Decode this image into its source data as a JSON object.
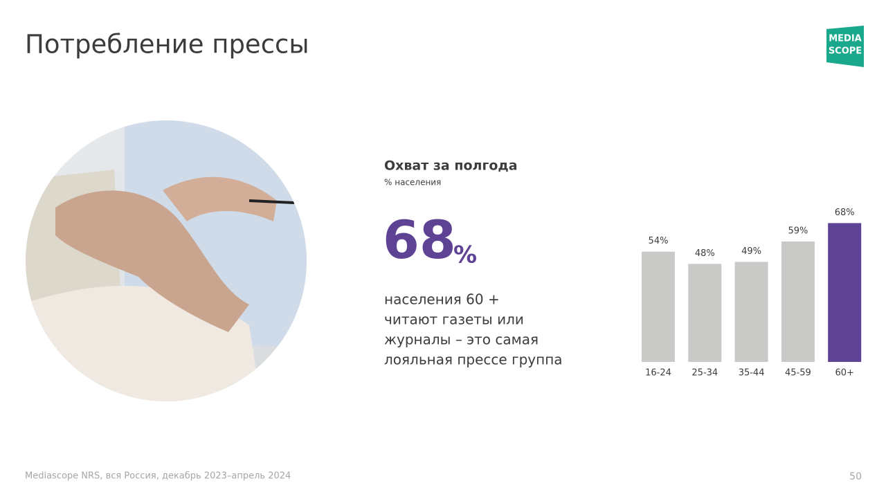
{
  "header": {
    "title": "Потребление прессы",
    "logo": [
      "MEDIA",
      "SCOPE"
    ]
  },
  "panel": {
    "title": "Охват за полгода",
    "subtitle": "% населения",
    "highlight": {
      "number": "68",
      "unit": "%"
    },
    "text": [
      "населения 60 +",
      "читают газеты или",
      "журналы – это самая",
      "лояльная прессе группа"
    ]
  },
  "chart_data": {
    "type": "bar",
    "categories": [
      "16-24",
      "25-34",
      "35-44",
      "45-59",
      "60+"
    ],
    "values": [
      54,
      48,
      49,
      59,
      68
    ],
    "value_labels": [
      "54%",
      "48%",
      "49%",
      "59%",
      "68%"
    ],
    "colors": [
      "#c9c9c7",
      "#c9c9c7",
      "#c9c9c7",
      "#c9c9c7",
      "#5e4395"
    ]
  },
  "footer": {
    "source": "Mediascope NRS, вся Россия, декабрь 2023–апрель 2024",
    "page": "50"
  }
}
